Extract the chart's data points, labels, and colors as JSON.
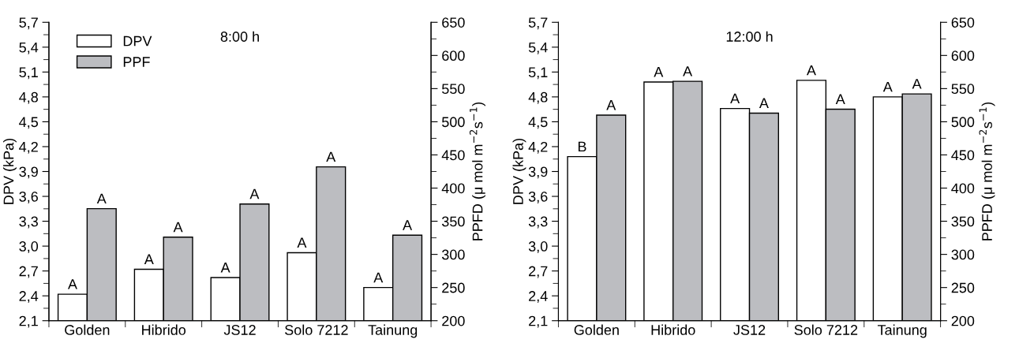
{
  "chart_data": [
    {
      "type": "bar",
      "title": "8:00 h",
      "ylabel": "DPV (kPa)",
      "y2label": "PPFD (μ mol m$^{−2}$s$^{−1}$)",
      "categories": [
        "Golden",
        "Hibrido",
        "JS12",
        "Solo 7212",
        "Tainung"
      ],
      "series": [
        {
          "name": "DPV",
          "color": "#ffffff",
          "values": [
            2.42,
            2.72,
            2.62,
            2.92,
            2.5
          ],
          "value_labels": [
            "A",
            "A",
            "A",
            "A",
            "A"
          ]
        },
        {
          "name": "PPF",
          "color": "#bcbdc1",
          "axis": "y2",
          "values": [
            369,
            326,
            376,
            432,
            329
          ],
          "value_labels": [
            "A",
            "A",
            "A",
            "A",
            "A"
          ]
        }
      ],
      "ylim": [
        2.1,
        5.7
      ],
      "yticks": [
        {
          "value": 2.1,
          "label": "2,1"
        },
        {
          "value": 2.4,
          "label": "2,4"
        },
        {
          "value": 2.7,
          "label": "2,7"
        },
        {
          "value": 3.0,
          "label": "3,0"
        },
        {
          "value": 3.3,
          "label": "3,3"
        },
        {
          "value": 3.6,
          "label": "3,6"
        },
        {
          "value": 3.9,
          "label": "3,9"
        },
        {
          "value": 4.2,
          "label": "4,2"
        },
        {
          "value": 4.5,
          "label": "4,5"
        },
        {
          "value": 4.8,
          "label": "4,8"
        },
        {
          "value": 5.1,
          "label": "5,1"
        },
        {
          "value": 5.4,
          "label": "5,4"
        },
        {
          "value": 5.7,
          "label": "5,7"
        }
      ],
      "y2lim": [
        200,
        650
      ],
      "y2ticks": [
        200,
        250,
        300,
        350,
        400,
        450,
        500,
        550,
        600,
        650
      ],
      "legend": "top left",
      "grid": false
    },
    {
      "type": "bar",
      "title": "12:00 h",
      "ylabel": "DPV (kPa)",
      "y2label": "PPFD (μ mol m$^{−2}$s$^{−1}$)",
      "categories": [
        "Golden",
        "Hibrido",
        "JS12",
        "Solo 7212",
        "Tainung"
      ],
      "series": [
        {
          "color": "#ffffff",
          "values": [
            4.08,
            4.98,
            4.66,
            5.0,
            4.8
          ],
          "value_labels": [
            "B",
            "A",
            "A",
            "A",
            "A"
          ]
        },
        {
          "color": "#bcbdc1",
          "axis": "y2",
          "values": [
            510,
            561,
            513,
            519,
            542
          ],
          "value_labels": [
            "A",
            "A",
            "A",
            "A",
            "A"
          ]
        }
      ],
      "ylim": [
        2.1,
        5.7
      ],
      "yticks": [
        {
          "value": 2.1,
          "label": "2,1"
        },
        {
          "value": 2.4,
          "label": "2,4"
        },
        {
          "value": 2.7,
          "label": "2,7"
        },
        {
          "value": 3.0,
          "label": "3,0"
        },
        {
          "value": 3.3,
          "label": "3,3"
        },
        {
          "value": 3.6,
          "label": "3,6"
        },
        {
          "value": 3.9,
          "label": "3,9"
        },
        {
          "value": 4.2,
          "label": "4,2"
        },
        {
          "value": 4.5,
          "label": "4,5"
        },
        {
          "value": 4.8,
          "label": "4,8"
        },
        {
          "value": 5.1,
          "label": "5,1"
        },
        {
          "value": 5.4,
          "label": "5,4"
        },
        {
          "value": 5.7,
          "label": "5,7"
        }
      ],
      "y2lim": [
        200,
        650
      ],
      "y2ticks": [
        200,
        250,
        300,
        350,
        400,
        450,
        500,
        550,
        600,
        650
      ],
      "legend": false,
      "grid": false
    }
  ]
}
